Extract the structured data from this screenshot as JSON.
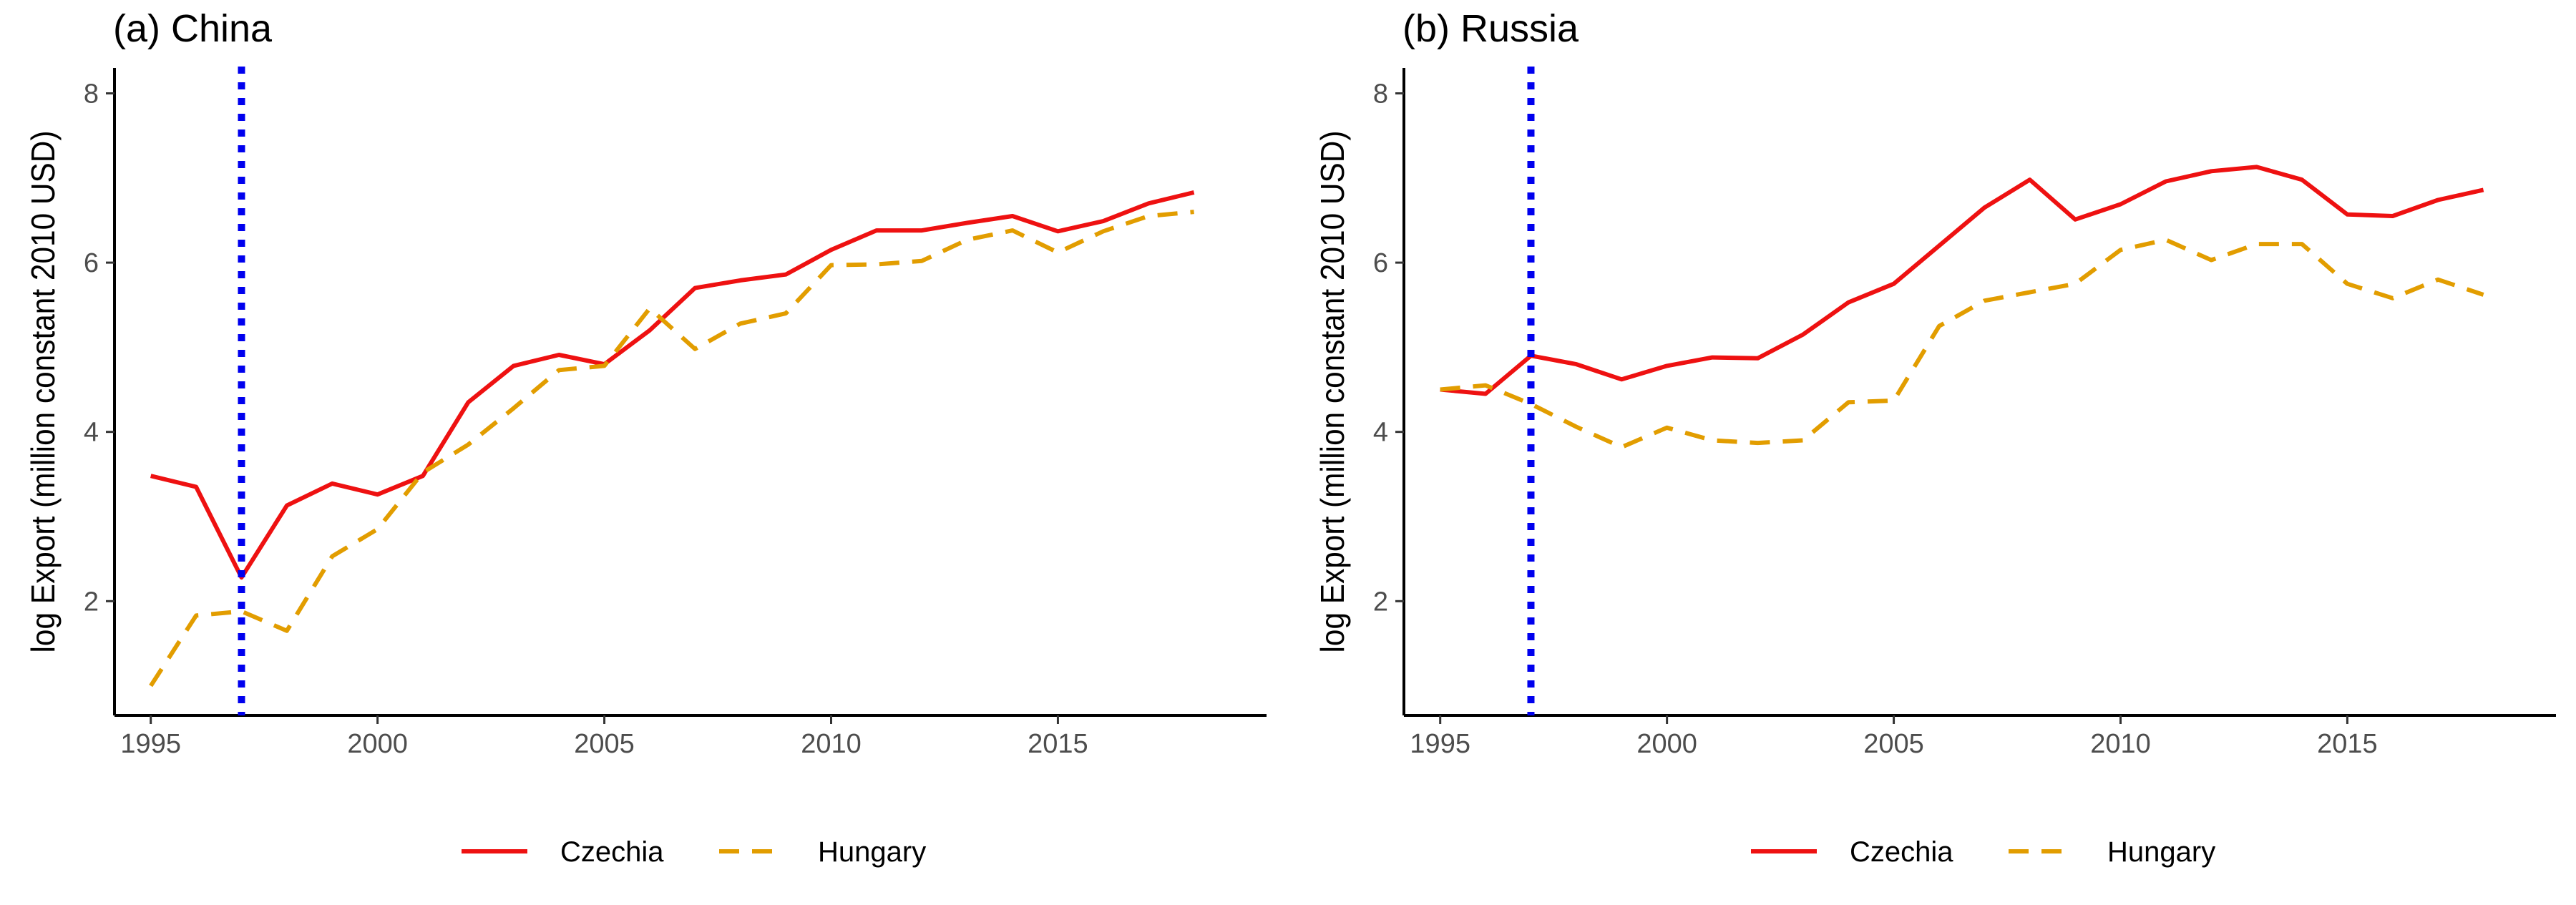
{
  "chart_data": [
    {
      "type": "line",
      "title": "(a) China",
      "ylabel": "log Export (million constant 2010 USD)",
      "xlabel": "",
      "x": [
        1995,
        1996,
        1997,
        1998,
        1999,
        2000,
        2001,
        2002,
        2003,
        2004,
        2005,
        2006,
        2007,
        2008,
        2009,
        2010,
        2011,
        2012,
        2013,
        2014,
        2015,
        2016,
        2017,
        2018
      ],
      "xlim": [
        1994.2,
        2019.6
      ],
      "ylim": [
        0.65,
        8.3
      ],
      "xticks": [
        1995,
        2000,
        2005,
        2010,
        2015
      ],
      "yticks": [
        2,
        4,
        6,
        8
      ],
      "vline": 1997,
      "series": [
        {
          "name": "Czechia",
          "color": "#ee1111",
          "dash": "solid",
          "values": [
            3.48,
            3.35,
            2.28,
            3.13,
            3.39,
            3.26,
            3.48,
            4.35,
            4.78,
            4.91,
            4.8,
            5.2,
            5.7,
            5.79,
            5.86,
            6.15,
            6.38,
            6.38,
            6.47,
            6.55,
            6.37,
            6.49,
            6.7,
            6.83
          ]
        },
        {
          "name": "Hungary",
          "color": "#e29d00",
          "dash": "dashed",
          "values": [
            1.0,
            1.83,
            1.88,
            1.65,
            2.53,
            2.85,
            3.52,
            3.85,
            4.28,
            4.73,
            4.78,
            5.46,
            4.98,
            5.28,
            5.4,
            5.97,
            5.98,
            6.02,
            6.27,
            6.38,
            6.12,
            6.37,
            6.55,
            6.6
          ]
        }
      ],
      "legend": "bottom"
    },
    {
      "type": "line",
      "title": "(b) Russia",
      "ylabel": "log Export (million constant 2010 USD)",
      "xlabel": "",
      "x": [
        1995,
        1996,
        1997,
        1998,
        1999,
        2000,
        2001,
        2002,
        2003,
        2004,
        2005,
        2006,
        2007,
        2008,
        2009,
        2010,
        2011,
        2012,
        2013,
        2014,
        2015,
        2016,
        2017,
        2018
      ],
      "xlim": [
        1994.2,
        2019.6
      ],
      "ylim": [
        0.65,
        8.3
      ],
      "xticks": [
        1995,
        2000,
        2005,
        2010,
        2015
      ],
      "yticks": [
        2,
        4,
        6,
        8
      ],
      "vline": 1997,
      "series": [
        {
          "name": "Czechia",
          "color": "#ee1111",
          "dash": "solid",
          "values": [
            4.5,
            4.45,
            4.9,
            4.8,
            4.62,
            4.78,
            4.88,
            4.87,
            5.15,
            5.53,
            5.75,
            6.2,
            6.65,
            6.98,
            6.51,
            6.69,
            6.96,
            7.08,
            7.13,
            6.98,
            6.57,
            6.55,
            6.74,
            6.86
          ]
        },
        {
          "name": "Hungary",
          "color": "#e29d00",
          "dash": "dashed",
          "values": [
            4.5,
            4.55,
            4.33,
            4.06,
            3.82,
            4.05,
            3.9,
            3.87,
            3.9,
            4.35,
            4.37,
            5.25,
            5.55,
            5.65,
            5.75,
            6.15,
            6.27,
            6.03,
            6.22,
            6.22,
            5.75,
            5.58,
            5.8,
            5.62
          ]
        }
      ],
      "legend": "bottom"
    }
  ]
}
